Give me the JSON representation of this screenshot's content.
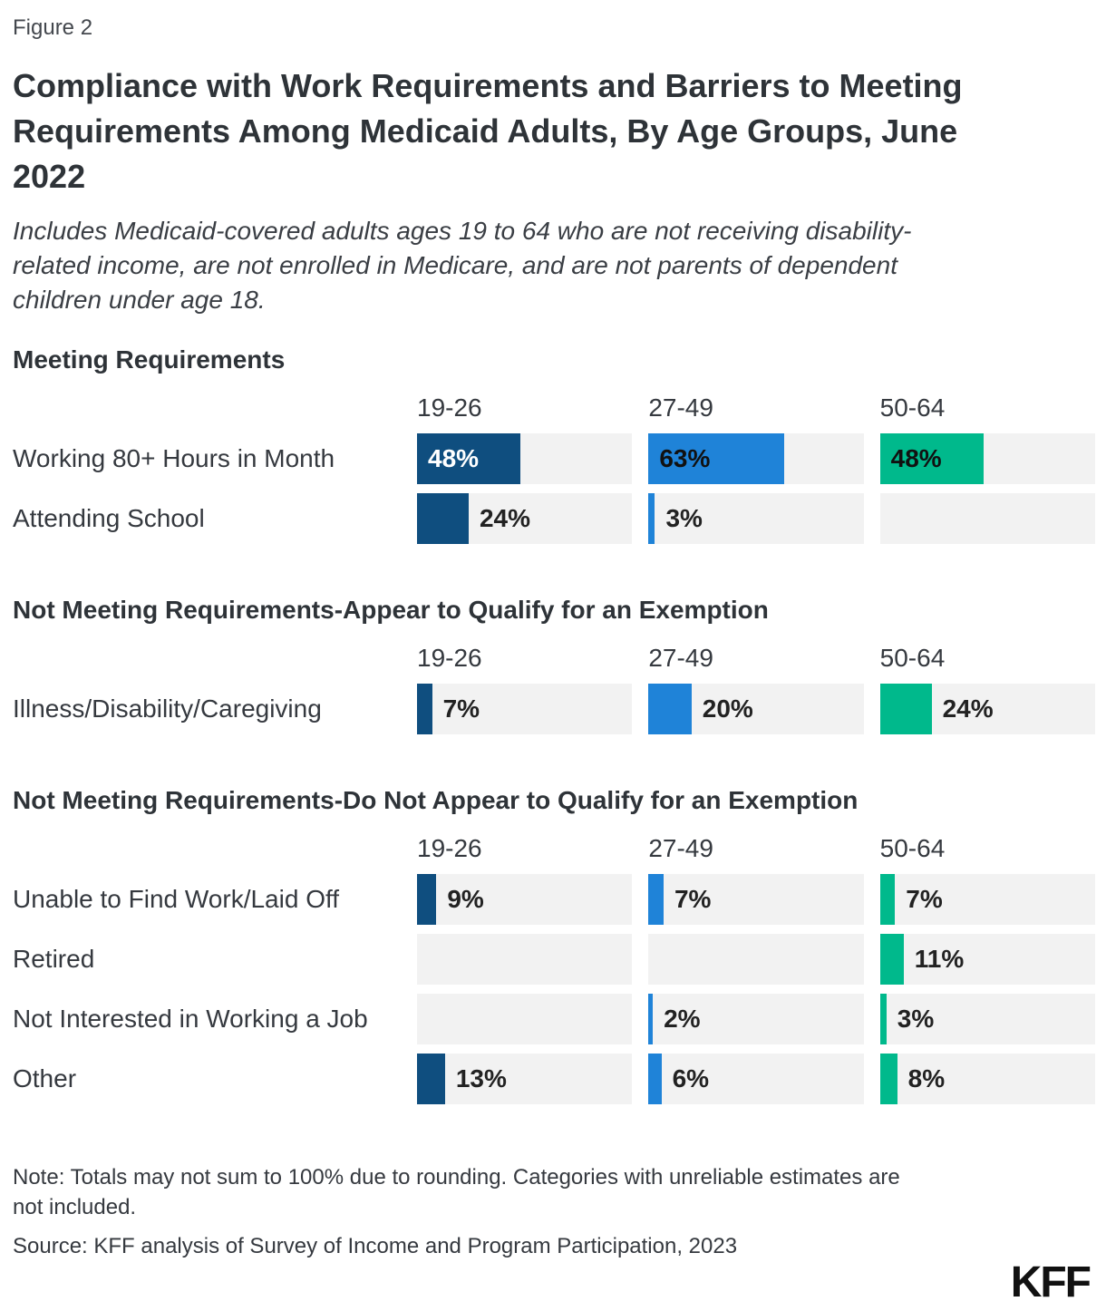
{
  "figure_label": "Figure 2",
  "title_lines": [
    "Compliance with Work Requirements and Barriers to Meeting",
    "Requirements Among Medicaid Adults, By Age Groups, June",
    "2022"
  ],
  "subtitle_lines": [
    "Includes Medicaid-covered adults ages 19 to 64 who are not receiving disability-",
    "related income, are not enrolled in Medicare, and are not parents of dependent",
    "children under age 18."
  ],
  "note_lines": [
    "Note: Totals may not sum to 100% due to rounding. Categories with unreliable estimates are",
    "not included."
  ],
  "source": "Source: KFF analysis of Survey of Income and Program Participation, 2023",
  "logo_text": "KFF",
  "colors": {
    "age_19_26": "#0f4e7f",
    "age_27_49": "#1f83d8",
    "age_50_64": "#00b98c",
    "track_gray": "#f2f2f2",
    "text": "#35393f"
  },
  "chart_data": {
    "type": "bar",
    "orientation": "horizontal",
    "xlim": [
      0,
      100
    ],
    "unit": "%",
    "series": [
      {
        "name": "19-26",
        "color": "#0f4e7f"
      },
      {
        "name": "27-49",
        "color": "#1f83d8"
      },
      {
        "name": "50-64",
        "color": "#00b98c"
      }
    ],
    "sections": [
      {
        "heading": "Meeting Requirements",
        "rows": [
          {
            "label": "Working 80+ Hours in Month",
            "values": [
              48,
              63,
              48
            ]
          },
          {
            "label": "Attending School",
            "values": [
              24,
              3,
              null
            ]
          }
        ]
      },
      {
        "heading": "Not Meeting Requirements-Appear to Qualify for an Exemption",
        "rows": [
          {
            "label": "Illness/Disability/Caregiving",
            "values": [
              7,
              20,
              24
            ]
          }
        ]
      },
      {
        "heading": "Not Meeting Requirements-Do Not Appear to Qualify for an Exemption",
        "rows": [
          {
            "label": "Unable to Find Work/Laid Off",
            "values": [
              9,
              7,
              7
            ]
          },
          {
            "label": "Retired",
            "values": [
              null,
              null,
              11
            ]
          },
          {
            "label": "Not Interested in Working a Job",
            "values": [
              null,
              2,
              3
            ]
          },
          {
            "label": "Other",
            "values": [
              13,
              6,
              8
            ]
          }
        ]
      }
    ]
  }
}
